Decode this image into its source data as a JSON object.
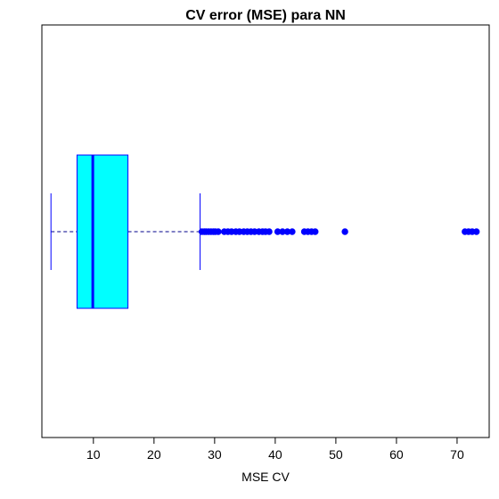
{
  "chart_data": {
    "type": "boxplot",
    "orientation": "horizontal",
    "title": "CV error (MSE) para NN",
    "xlabel": "MSE CV",
    "ylabel": "",
    "xlim": [
      1.5,
      75.3
    ],
    "x_ticks": [
      10,
      20,
      30,
      40,
      50,
      60,
      70
    ],
    "x_tick_labels": [
      "10",
      "20",
      "30",
      "40",
      "50",
      "60",
      "70"
    ],
    "grid": false,
    "stats": {
      "whisker_low": 3.0,
      "q1": 7.3,
      "median": 9.9,
      "q3": 15.7,
      "whisker_high": 27.6
    },
    "outliers": [
      27.9,
      28.3,
      28.6,
      29.0,
      29.4,
      29.8,
      30.1,
      30.6,
      31.6,
      32.2,
      32.8,
      33.5,
      34.1,
      34.8,
      35.4,
      36.0,
      36.6,
      37.3,
      37.9,
      38.4,
      39.0,
      40.4,
      41.2,
      42.0,
      42.8,
      44.8,
      45.4,
      46.0,
      46.6,
      51.5,
      71.3,
      71.9,
      72.5,
      73.2
    ],
    "colors": {
      "box_fill": "#00ffff",
      "box_border": "#0000ff",
      "median_line": "#0000ff",
      "whisker": "#00008b",
      "outlier": "#0000ff",
      "axis": "#000000"
    }
  }
}
